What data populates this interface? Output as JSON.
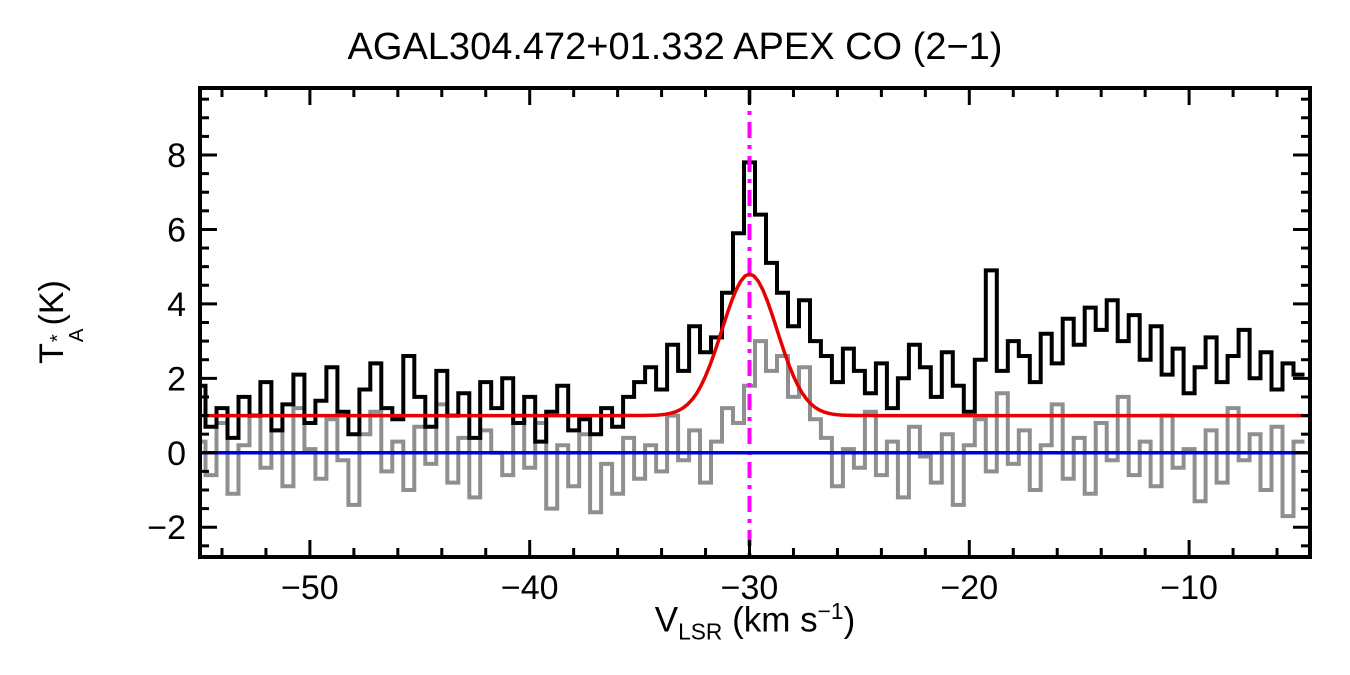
{
  "title": "AGAL304.472+01.332  APEX CO (2−1)",
  "axes": {
    "ylabel": {
      "prefix": "T",
      "sup": "*",
      "sub": "A",
      "suffix": "(K)"
    },
    "xlabel": {
      "prefix": "V",
      "sub": "LSR",
      "mid": " (km s",
      "sup": "−1",
      "suffix": ")"
    }
  },
  "chart_data": {
    "type": "line",
    "title": "AGAL304.472+01.332  APEX CO (2−1)",
    "xlabel": "V_LSR (km s^-1)",
    "ylabel": "T_A^* (K)",
    "xlim": [
      -55,
      -4.5
    ],
    "ylim": [
      -2.8,
      9.8
    ],
    "xticks": [
      -50,
      -40,
      -30,
      -20,
      -10
    ],
    "yticks": [
      -2,
      0,
      2,
      4,
      6,
      8
    ],
    "xtick_minor_step": 2,
    "ytick_minor_step": 0.5,
    "grid": false,
    "legend": "none",
    "x_start": -55,
    "x_step": 0.5,
    "series": [
      {
        "name": "observed-spectrum",
        "color": "#000000",
        "mode": "steps",
        "line_width": 4,
        "values": [
          1.8,
          0.7,
          1.2,
          0.4,
          1.5,
          1.0,
          1.9,
          0.6,
          1.3,
          2.1,
          0.8,
          1.4,
          2.3,
          1.1,
          0.5,
          1.7,
          2.4,
          1.2,
          0.9,
          2.6,
          1.5,
          0.7,
          2.2,
          1.0,
          1.6,
          0.4,
          1.9,
          1.2,
          2.0,
          0.8,
          1.5,
          0.3,
          1.1,
          1.8,
          0.6,
          0.9,
          0.5,
          1.2,
          0.7,
          1.5,
          1.9,
          2.3,
          1.7,
          2.9,
          2.2,
          3.4,
          2.7,
          3.1,
          4.3,
          5.9,
          7.8,
          6.4,
          5.1,
          4.3,
          3.4,
          4.1,
          3.0,
          2.6,
          1.9,
          2.8,
          2.2,
          1.6,
          2.4,
          1.2,
          2.0,
          2.9,
          2.3,
          1.5,
          2.7,
          1.8,
          1.1,
          2.5,
          4.9,
          2.2,
          3.0,
          2.6,
          1.9,
          3.2,
          2.4,
          3.6,
          2.9,
          3.9,
          3.3,
          4.1,
          3.0,
          3.7,
          2.5,
          3.4,
          2.1,
          2.8,
          1.6,
          2.3,
          3.1,
          1.9,
          2.6,
          3.3,
          2.0,
          2.7,
          1.7,
          2.4,
          2.1
        ]
      },
      {
        "name": "reference-spectrum",
        "color": "#8f8f8f",
        "mode": "steps",
        "line_width": 4,
        "values": [
          0.3,
          -0.6,
          0.8,
          -1.1,
          0.2,
          1.0,
          -0.4,
          0.6,
          -0.9,
          1.2,
          0.1,
          -0.7,
          0.9,
          -0.2,
          -1.4,
          0.5,
          1.1,
          -0.5,
          0.3,
          -1.0,
          0.7,
          -0.3,
          1.3,
          -0.8,
          0.4,
          -1.2,
          0.6,
          0.0,
          -0.6,
          1.0,
          -0.4,
          0.8,
          -1.5,
          0.2,
          -0.9,
          0.5,
          -1.6,
          -0.3,
          -1.1,
          0.4,
          -0.7,
          0.2,
          -0.5,
          1.0,
          -0.2,
          0.6,
          -0.8,
          0.3,
          1.2,
          0.8,
          1.8,
          3.0,
          2.2,
          2.6,
          1.5,
          2.3,
          0.9,
          0.4,
          -0.9,
          0.1,
          -0.4,
          1.1,
          -0.6,
          0.3,
          -1.2,
          0.7,
          -0.1,
          -0.8,
          0.5,
          -1.4,
          0.2,
          0.9,
          -0.5,
          1.6,
          -0.3,
          0.6,
          -1.0,
          0.2,
          1.3,
          -0.7,
          0.4,
          -1.1,
          0.8,
          -0.2,
          1.5,
          -0.6,
          0.3,
          -0.9,
          1.0,
          -0.4,
          0.1,
          -1.3,
          0.6,
          -0.8,
          1.2,
          -0.2,
          0.5,
          -1.0,
          0.7,
          -1.7,
          0.3
        ]
      }
    ],
    "gaussian_fit": {
      "name": "gaussian-fit",
      "color": "#e60000",
      "line_width": 3.5,
      "baseline": 1.0,
      "amplitude": 3.8,
      "center": -30.0,
      "sigma": 1.25
    },
    "baseline_line": {
      "name": "zero-baseline",
      "color": "#0000dd",
      "line_width": 3.5,
      "y": 0
    },
    "vline": {
      "name": "vlsr-marker",
      "color": "#ff00ff",
      "line_width": 4,
      "x": -30,
      "style": "dashdot"
    }
  }
}
